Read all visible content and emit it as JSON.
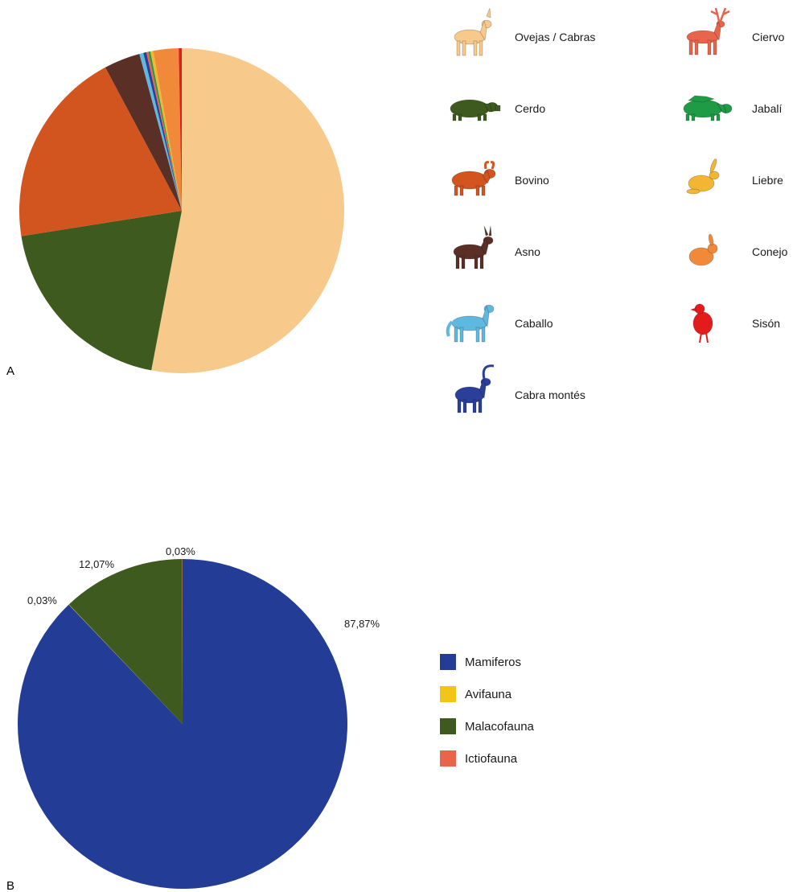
{
  "chart_data": [
    {
      "type": "pie",
      "panel_label": "A",
      "categories": [
        "Ovejas / Cabras",
        "Cerdo",
        "Bovino",
        "Asno",
        "Caballo",
        "Cabra montés",
        "Ciervo",
        "Jabalí",
        "Liebre",
        "Conejo",
        "Sisón"
      ],
      "values": [
        53.0,
        19.5,
        19.7,
        3.6,
        0.4,
        0.3,
        0.2,
        0.2,
        0.3,
        2.5,
        0.3
      ],
      "colors": [
        "#f7c98a",
        "#3e5a1e",
        "#d2541f",
        "#5a2f25",
        "#5fb8e0",
        "#2a3f9a",
        "#e8644a",
        "#1f9a45",
        "#f2b632",
        "#f08a3a",
        "#e31b1b"
      ],
      "icons": [
        "sheep-goat-icon",
        "pig-icon",
        "bull-icon",
        "donkey-icon",
        "horse-icon",
        "ibex-icon",
        "deer-icon",
        "boar-icon",
        "hare-icon",
        "rabbit-icon",
        "bustard-icon"
      ],
      "legend_placement": "right",
      "start_angle_deg": 0,
      "direction": "clockwise"
    },
    {
      "type": "pie",
      "panel_label": "B",
      "categories": [
        "Mamiferos",
        "Avifauna",
        "Malacofauna",
        "Ictiofauna"
      ],
      "values": [
        87.87,
        0.03,
        12.07,
        0.03
      ],
      "data_labels": [
        "87,87%",
        "0,03%",
        "12,07%",
        "0,03%"
      ],
      "colors": [
        "#233c96",
        "#f2c519",
        "#3e5a1e",
        "#e8644a"
      ],
      "legend_placement": "right",
      "start_angle_deg": 0,
      "direction": "clockwise"
    }
  ]
}
